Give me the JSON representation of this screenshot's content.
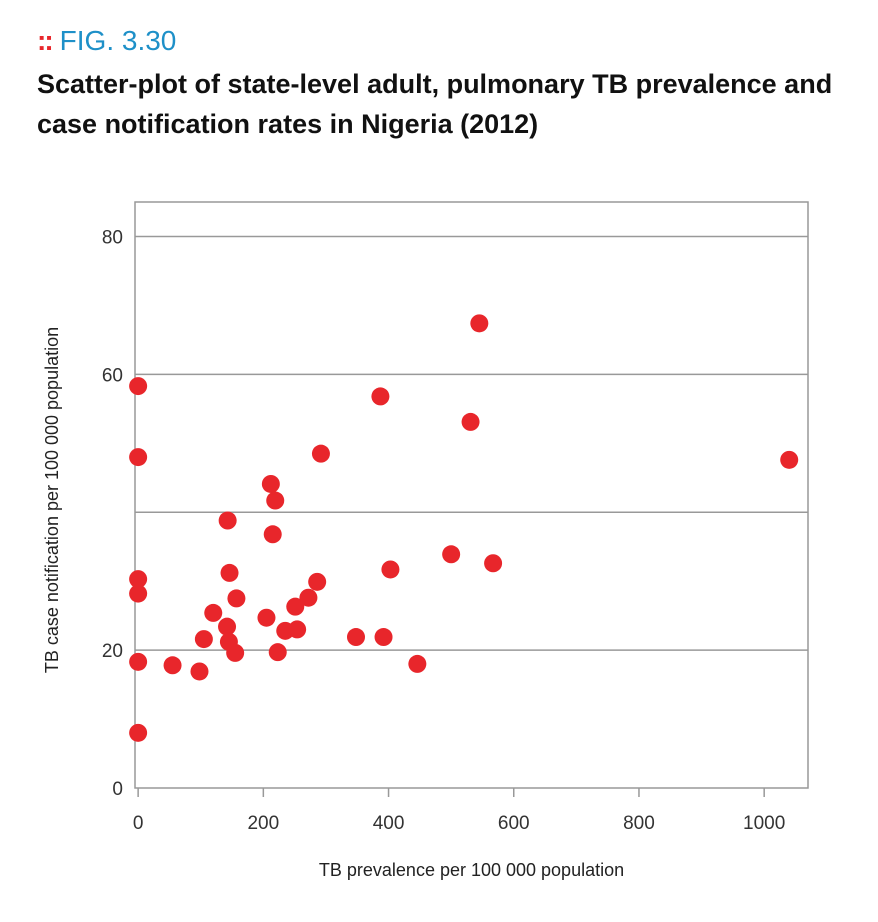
{
  "figure": {
    "marker": "::",
    "label": "FIG. 3.30",
    "title": "Scatter-plot of state-level adult, pulmonary TB prevalence and case notification rates in Nigeria (2012)"
  },
  "colors": {
    "figure_label": "#1e90c8",
    "marker": "#e8262b",
    "points": "#e8262b",
    "gridline": "#999999",
    "frame": "#999999"
  },
  "chart_data": {
    "type": "scatter",
    "xlabel": "TB prevalence per 100 000 population",
    "ylabel": "TB case notification per 100 000 population",
    "xlim": [
      -5,
      1070
    ],
    "ylim": [
      0,
      85
    ],
    "xticks": [
      0,
      200,
      400,
      600,
      800,
      1000
    ],
    "xtick_labels": [
      "0",
      "200",
      "400",
      "600",
      "800",
      "1000"
    ],
    "yticks": [
      0,
      20,
      40,
      60,
      80
    ],
    "ytick_labels": [
      "0",
      "20",
      "",
      "60",
      "80"
    ],
    "grid": "horizontal",
    "points": [
      {
        "x": 0,
        "y": 58.3
      },
      {
        "x": 0,
        "y": 48
      },
      {
        "x": 0,
        "y": 30.3
      },
      {
        "x": 0,
        "y": 28.2
      },
      {
        "x": 0,
        "y": 18.3
      },
      {
        "x": 0,
        "y": 8
      },
      {
        "x": 55,
        "y": 17.8
      },
      {
        "x": 98,
        "y": 16.9
      },
      {
        "x": 105,
        "y": 21.6
      },
      {
        "x": 120,
        "y": 25.4
      },
      {
        "x": 142,
        "y": 23.4
      },
      {
        "x": 143,
        "y": 38.8
      },
      {
        "x": 145,
        "y": 21.2
      },
      {
        "x": 146,
        "y": 31.2
      },
      {
        "x": 155,
        "y": 19.6
      },
      {
        "x": 157,
        "y": 27.5
      },
      {
        "x": 205,
        "y": 24.7
      },
      {
        "x": 212,
        "y": 44.1
      },
      {
        "x": 215,
        "y": 36.8
      },
      {
        "x": 219,
        "y": 41.7
      },
      {
        "x": 223,
        "y": 19.7
      },
      {
        "x": 235,
        "y": 22.8
      },
      {
        "x": 251,
        "y": 26.3
      },
      {
        "x": 254,
        "y": 23
      },
      {
        "x": 272,
        "y": 27.6
      },
      {
        "x": 286,
        "y": 29.9
      },
      {
        "x": 292,
        "y": 48.5
      },
      {
        "x": 348,
        "y": 21.9
      },
      {
        "x": 387,
        "y": 56.8
      },
      {
        "x": 392,
        "y": 21.9
      },
      {
        "x": 403,
        "y": 31.7
      },
      {
        "x": 446,
        "y": 18
      },
      {
        "x": 500,
        "y": 33.9
      },
      {
        "x": 531,
        "y": 53.1
      },
      {
        "x": 545,
        "y": 67.4
      },
      {
        "x": 567,
        "y": 32.6
      },
      {
        "x": 1040,
        "y": 47.6
      }
    ]
  }
}
